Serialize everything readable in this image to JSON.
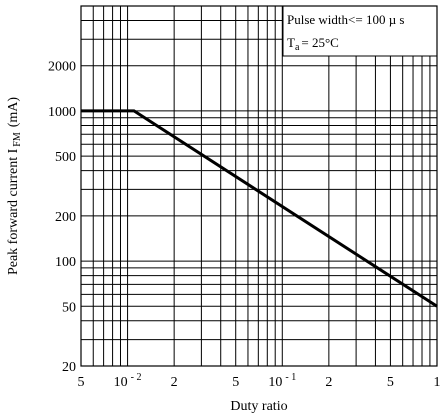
{
  "chart_data": {
    "type": "line",
    "xscale": "log",
    "yscale": "log",
    "xlim": [
      0.005,
      1
    ],
    "ylim": [
      20,
      5000
    ],
    "xlabel": "Duty ratio",
    "ylabel": {
      "main": "Peak forward current I",
      "sub": "FM",
      "unit": "(mA)"
    },
    "x_ticks": [
      {
        "value": 0.005,
        "label": "5"
      },
      {
        "value": 0.01,
        "base": "10",
        "exp": "- 2"
      },
      {
        "value": 0.02,
        "label": "2"
      },
      {
        "value": 0.05,
        "label": "5"
      },
      {
        "value": 0.1,
        "base": "10",
        "exp": "- 1"
      },
      {
        "value": 0.2,
        "label": "2"
      },
      {
        "value": 0.5,
        "label": "5"
      },
      {
        "value": 1,
        "label": "1"
      }
    ],
    "y_ticks": [
      {
        "value": 20,
        "label": "20"
      },
      {
        "value": 50,
        "label": "50"
      },
      {
        "value": 100,
        "label": "100"
      },
      {
        "value": 200,
        "label": "200"
      },
      {
        "value": 500,
        "label": "500"
      },
      {
        "value": 1000,
        "label": "1000"
      },
      {
        "value": 2000,
        "label": "2000"
      }
    ],
    "annotation": {
      "line1": "Pulse width<= 100 µ s",
      "line2_main": "T",
      "line2_sub": "a",
      "line2_rest": "=  25°C"
    },
    "series": [
      {
        "x": [
          0.005,
          0.011,
          1
        ],
        "y": [
          1000,
          1000,
          50
        ]
      }
    ],
    "grid": true
  }
}
